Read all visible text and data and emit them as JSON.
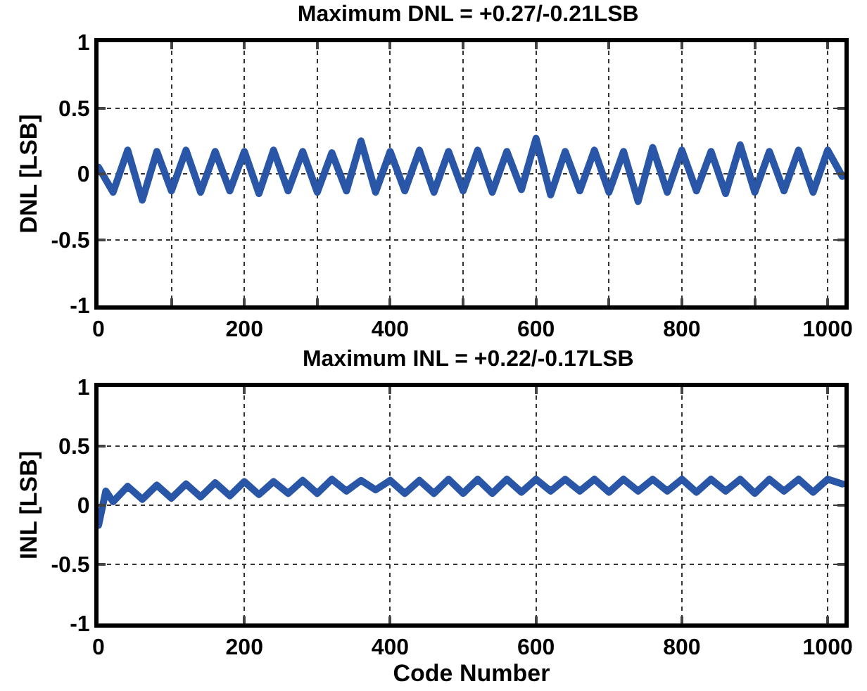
{
  "chart_data": [
    {
      "type": "line",
      "title": "Maximum DNL = +0.27/-0.21LSB",
      "ylabel": "DNL [LSB]",
      "xlim": [
        0,
        1023
      ],
      "xticks": [
        0,
        {
          "value": 100,
          "label": null
        },
        200,
        {
          "value": 300,
          "label": null
        },
        400,
        {
          "value": 500,
          "label": null
        },
        600,
        {
          "value": 700,
          "label": null
        },
        800,
        {
          "value": 900,
          "label": null
        },
        1000
      ],
      "ylim": [
        -1,
        1
      ],
      "yticks": [
        -1,
        -0.5,
        0,
        0.5,
        1
      ],
      "grid": true,
      "line_style": "solid",
      "marker": "none",
      "series": [
        {
          "color": "#2a56a8",
          "x": [
            0,
            20,
            40,
            60,
            80,
            100,
            120,
            140,
            160,
            180,
            200,
            220,
            240,
            260,
            280,
            300,
            320,
            340,
            360,
            380,
            400,
            420,
            440,
            460,
            480,
            500,
            520,
            540,
            560,
            580,
            600,
            620,
            640,
            660,
            680,
            700,
            720,
            740,
            760,
            780,
            800,
            820,
            840,
            860,
            880,
            900,
            920,
            940,
            960,
            980,
            1000,
            1020
          ],
          "values": [
            0.05,
            -0.14,
            0.18,
            -0.2,
            0.17,
            -0.13,
            0.18,
            -0.14,
            0.17,
            -0.13,
            0.17,
            -0.15,
            0.18,
            -0.13,
            0.17,
            -0.14,
            0.16,
            -0.13,
            0.25,
            -0.14,
            0.17,
            -0.13,
            0.18,
            -0.14,
            0.17,
            -0.13,
            0.18,
            -0.14,
            0.17,
            -0.12,
            0.27,
            -0.16,
            0.17,
            -0.13,
            0.18,
            -0.14,
            0.17,
            -0.21,
            0.2,
            -0.14,
            0.18,
            -0.13,
            0.17,
            -0.15,
            0.22,
            -0.14,
            0.17,
            -0.13,
            0.18,
            -0.14,
            0.18,
            -0.02
          ]
        }
      ]
    },
    {
      "type": "line",
      "title": "Maximum INL = +0.22/-0.17LSB",
      "xlabel": "Code Number",
      "ylabel": "INL [LSB]",
      "xlim": [
        0,
        1023
      ],
      "xticks": [
        0,
        200,
        400,
        600,
        800,
        1000
      ],
      "ylim": [
        -1,
        1
      ],
      "yticks": [
        -1,
        -0.5,
        0,
        0.5,
        1
      ],
      "grid": true,
      "line_style": "solid",
      "marker": "none",
      "series": [
        {
          "color": "#2a56a8",
          "x": [
            0,
            10,
            20,
            40,
            60,
            80,
            100,
            120,
            140,
            160,
            180,
            200,
            220,
            240,
            260,
            280,
            300,
            320,
            340,
            360,
            380,
            400,
            420,
            440,
            460,
            480,
            500,
            520,
            540,
            560,
            580,
            600,
            620,
            640,
            660,
            680,
            700,
            720,
            740,
            760,
            780,
            800,
            820,
            840,
            860,
            880,
            900,
            920,
            940,
            960,
            980,
            1000,
            1020
          ],
          "values": [
            -0.17,
            0.12,
            0.03,
            0.16,
            0.05,
            0.17,
            0.06,
            0.18,
            0.07,
            0.19,
            0.08,
            0.2,
            0.09,
            0.2,
            0.1,
            0.21,
            0.1,
            0.22,
            0.12,
            0.21,
            0.13,
            0.21,
            0.1,
            0.21,
            0.1,
            0.22,
            0.1,
            0.22,
            0.1,
            0.22,
            0.11,
            0.22,
            0.12,
            0.22,
            0.12,
            0.22,
            0.11,
            0.22,
            0.12,
            0.22,
            0.12,
            0.22,
            0.11,
            0.22,
            0.12,
            0.22,
            0.1,
            0.22,
            0.12,
            0.22,
            0.11,
            0.22,
            0.18
          ]
        }
      ]
    }
  ]
}
